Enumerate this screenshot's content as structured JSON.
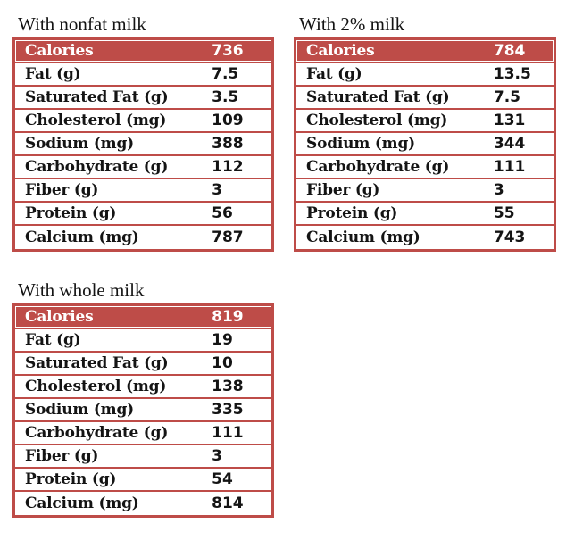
{
  "colors": {
    "accent": "#BE4C48",
    "header_text": "#FFFFFF",
    "text": "#141414",
    "background": "#FFFFFF"
  },
  "tables": [
    {
      "title": "With nonfat milk",
      "rows": [
        {
          "label": "Calories",
          "value": "736",
          "header": true
        },
        {
          "label": "Fat (g)",
          "value": "7.5"
        },
        {
          "label": "Saturated Fat (g)",
          "value": "3.5"
        },
        {
          "label": "Cholesterol (mg)",
          "value": "109"
        },
        {
          "label": "Sodium (mg)",
          "value": "388"
        },
        {
          "label": "Carbohydrate (g)",
          "value": "112"
        },
        {
          "label": "Fiber (g)",
          "value": "3"
        },
        {
          "label": "Protein (g)",
          "value": "56"
        },
        {
          "label": "Calcium (mg)",
          "value": "787"
        }
      ]
    },
    {
      "title": "With 2% milk",
      "rows": [
        {
          "label": "Calories",
          "value": "784",
          "header": true
        },
        {
          "label": "Fat (g)",
          "value": "13.5"
        },
        {
          "label": "Saturated Fat (g)",
          "value": "7.5"
        },
        {
          "label": "Cholesterol (mg)",
          "value": "131"
        },
        {
          "label": "Sodium (mg)",
          "value": "344"
        },
        {
          "label": "Carbohydrate (g)",
          "value": "111"
        },
        {
          "label": "Fiber (g)",
          "value": "3"
        },
        {
          "label": "Protein (g)",
          "value": "55"
        },
        {
          "label": "Calcium (mg)",
          "value": "743"
        }
      ]
    },
    {
      "title": "With whole milk",
      "rows": [
        {
          "label": "Calories",
          "value": "819",
          "header": true
        },
        {
          "label": "Fat (g)",
          "value": "19"
        },
        {
          "label": "Saturated Fat (g)",
          "value": "10"
        },
        {
          "label": "Cholesterol (mg)",
          "value": "138"
        },
        {
          "label": "Sodium (mg)",
          "value": "335"
        },
        {
          "label": "Carbohydrate (g)",
          "value": "111"
        },
        {
          "label": "Fiber (g)",
          "value": "3"
        },
        {
          "label": "Protein (g)",
          "value": "54"
        },
        {
          "label": "Calcium (mg)",
          "value": "814"
        }
      ]
    }
  ]
}
